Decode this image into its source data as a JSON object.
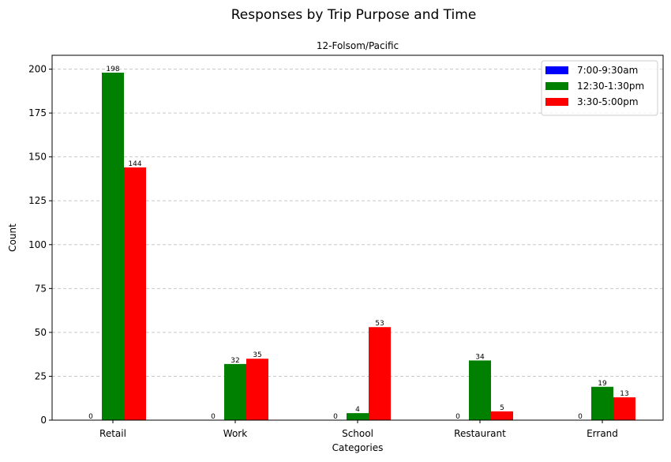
{
  "chart_data": {
    "type": "bar",
    "title": "Responses by Trip Purpose and Time",
    "subtitle": "12-Folsom/Pacific",
    "xlabel": "Categories",
    "ylabel": "Count",
    "categories": [
      "Retail",
      "Work",
      "School",
      "Restaurant",
      "Errand"
    ],
    "series": [
      {
        "name": "7:00-9:30am",
        "color": "#0000ff",
        "values": [
          0,
          0,
          0,
          0,
          0
        ]
      },
      {
        "name": "12:30-1:30pm",
        "color": "#008000",
        "values": [
          198,
          32,
          4,
          34,
          19
        ]
      },
      {
        "name": "3:30-5:00pm",
        "color": "#ff0000",
        "values": [
          144,
          35,
          53,
          5,
          13
        ]
      }
    ],
    "ylim": [
      0,
      207.9
    ],
    "yticks": [
      0,
      25,
      50,
      75,
      100,
      125,
      150,
      175,
      200
    ],
    "grid": "y, dashed",
    "legend_position": "upper right",
    "data_labels": true
  }
}
